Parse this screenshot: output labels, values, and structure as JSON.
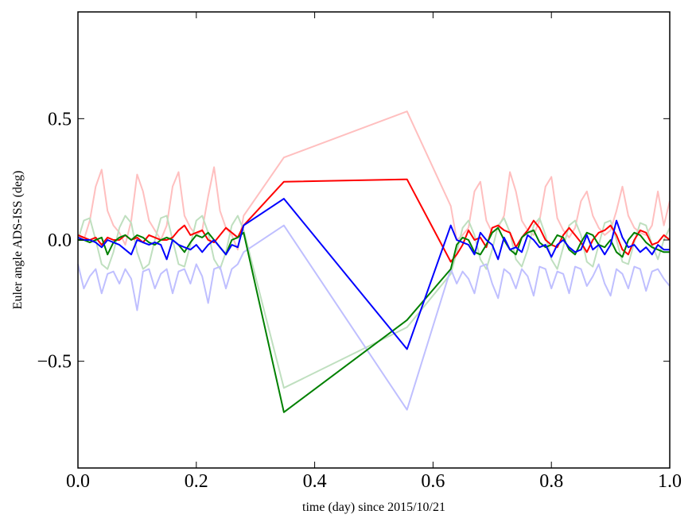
{
  "chart_data": {
    "type": "line",
    "title": "",
    "xlabel": "time (day) since 2015/10/21",
    "ylabel": "Euler angle ADS-ISS (deg)",
    "xlim": [
      0.0,
      1.0
    ],
    "ylim": [
      -0.94,
      0.94
    ],
    "xticks": [
      "0.0",
      "0.2",
      "0.4",
      "0.6",
      "0.8",
      "1.0"
    ],
    "xtick_values": [
      0.0,
      0.2,
      0.4,
      0.6,
      0.8,
      1.0
    ],
    "yticks": [
      "−0.5",
      "0.0",
      "0.5"
    ],
    "ytick_values": [
      -0.5,
      0.0,
      0.5
    ],
    "grid": false,
    "x": [
      0.0,
      0.01,
      0.02,
      0.03,
      0.04,
      0.05,
      0.06,
      0.07,
      0.08,
      0.09,
      0.1,
      0.11,
      0.12,
      0.13,
      0.14,
      0.15,
      0.16,
      0.17,
      0.18,
      0.19,
      0.2,
      0.21,
      0.22,
      0.23,
      0.24,
      0.25,
      0.26,
      0.27,
      0.28,
      0.348,
      0.556,
      0.63,
      0.64,
      0.65,
      0.66,
      0.67,
      0.68,
      0.69,
      0.7,
      0.71,
      0.72,
      0.73,
      0.74,
      0.75,
      0.76,
      0.77,
      0.78,
      0.79,
      0.8,
      0.81,
      0.82,
      0.83,
      0.84,
      0.85,
      0.86,
      0.87,
      0.88,
      0.89,
      0.9,
      0.91,
      0.92,
      0.93,
      0.94,
      0.95,
      0.96,
      0.97,
      0.98,
      0.99,
      1.0
    ],
    "series": [
      {
        "color": "#ffbfbf",
        "values": [
          0.02,
          0.0,
          0.08,
          0.22,
          0.29,
          0.12,
          0.06,
          0.03,
          -0.02,
          0.08,
          0.27,
          0.2,
          0.08,
          0.04,
          0.0,
          0.06,
          0.22,
          0.28,
          0.1,
          0.05,
          0.02,
          0.04,
          0.18,
          0.3,
          0.12,
          0.05,
          0.02,
          -0.04,
          0.1,
          0.34,
          0.53,
          0.14,
          0.0,
          0.02,
          0.05,
          0.2,
          0.24,
          0.08,
          0.03,
          0.05,
          0.1,
          0.28,
          0.2,
          0.08,
          0.04,
          0.02,
          0.08,
          0.22,
          0.26,
          0.09,
          0.04,
          0.01,
          0.05,
          0.16,
          0.2,
          0.1,
          0.05,
          0.02,
          0.04,
          0.12,
          0.22,
          0.1,
          0.05,
          0.03,
          0.02,
          0.06,
          0.2,
          0.06,
          0.16
        ]
      },
      {
        "color": "#bfdfbf",
        "values": [
          0.0,
          0.08,
          0.09,
          0.0,
          -0.1,
          -0.12,
          -0.05,
          0.05,
          0.1,
          0.07,
          -0.05,
          -0.12,
          -0.1,
          0.0,
          0.09,
          0.1,
          0.0,
          -0.1,
          -0.11,
          -0.02,
          0.08,
          0.1,
          0.03,
          -0.08,
          -0.12,
          -0.05,
          0.06,
          0.1,
          0.04,
          -0.61,
          -0.36,
          -0.14,
          -0.05,
          0.05,
          0.08,
          0.02,
          -0.08,
          -0.12,
          -0.04,
          0.06,
          0.09,
          0.03,
          -0.08,
          -0.11,
          -0.04,
          0.06,
          0.09,
          0.02,
          -0.08,
          -0.12,
          -0.03,
          0.06,
          0.08,
          0.02,
          -0.09,
          -0.11,
          -0.02,
          0.07,
          0.08,
          0.0,
          -0.09,
          -0.1,
          -0.01,
          0.07,
          0.06,
          -0.02,
          -0.08,
          0.0,
          0.05
        ]
      },
      {
        "color": "#bfbfff",
        "values": [
          -0.1,
          -0.2,
          -0.15,
          -0.12,
          -0.22,
          -0.14,
          -0.13,
          -0.18,
          -0.12,
          -0.16,
          -0.29,
          -0.13,
          -0.12,
          -0.2,
          -0.14,
          -0.12,
          -0.22,
          -0.13,
          -0.12,
          -0.18,
          -0.1,
          -0.15,
          -0.26,
          -0.12,
          -0.11,
          -0.2,
          -0.12,
          -0.1,
          -0.05,
          0.06,
          -0.7,
          -0.12,
          -0.18,
          -0.13,
          -0.16,
          -0.22,
          -0.11,
          -0.1,
          -0.18,
          -0.24,
          -0.12,
          -0.14,
          -0.2,
          -0.12,
          -0.15,
          -0.23,
          -0.11,
          -0.12,
          -0.2,
          -0.13,
          -0.14,
          -0.22,
          -0.11,
          -0.12,
          -0.19,
          -0.15,
          -0.1,
          -0.18,
          -0.23,
          -0.12,
          -0.14,
          -0.2,
          -0.11,
          -0.12,
          -0.21,
          -0.13,
          -0.12,
          -0.16,
          -0.19
        ]
      },
      {
        "color": "#ff0000",
        "values": [
          0.02,
          0.01,
          0.0,
          0.01,
          -0.02,
          0.01,
          0.0,
          0.0,
          0.02,
          0.0,
          0.01,
          -0.01,
          0.02,
          0.01,
          0.0,
          0.0,
          0.01,
          0.04,
          0.06,
          0.02,
          0.03,
          0.04,
          0.0,
          -0.01,
          0.02,
          0.05,
          0.03,
          0.01,
          0.06,
          0.24,
          0.25,
          -0.09,
          -0.06,
          -0.02,
          0.04,
          0.0,
          0.01,
          -0.03,
          0.05,
          0.06,
          0.04,
          0.03,
          -0.03,
          0.01,
          0.04,
          0.08,
          0.05,
          0.0,
          -0.02,
          -0.03,
          0.02,
          0.05,
          0.02,
          -0.01,
          -0.05,
          0.0,
          0.03,
          0.04,
          0.06,
          0.02,
          -0.04,
          -0.06,
          0.0,
          0.04,
          0.03,
          -0.02,
          -0.01,
          0.02,
          0.0
        ]
      },
      {
        "color": "#008000",
        "values": [
          0.0,
          0.0,
          -0.01,
          0.0,
          0.01,
          -0.06,
          -0.01,
          0.01,
          0.02,
          0.0,
          0.02,
          0.01,
          -0.01,
          -0.02,
          0.0,
          0.01,
          0.0,
          -0.02,
          -0.05,
          -0.01,
          0.02,
          0.01,
          0.03,
          0.0,
          -0.03,
          -0.06,
          0.0,
          0.01,
          0.03,
          -0.71,
          -0.33,
          -0.12,
          -0.02,
          0.01,
          0.0,
          -0.05,
          -0.06,
          -0.02,
          0.03,
          0.05,
          0.0,
          -0.04,
          -0.06,
          0.01,
          0.03,
          0.04,
          -0.01,
          -0.03,
          -0.02,
          0.02,
          0.01,
          -0.04,
          -0.06,
          -0.01,
          0.03,
          0.02,
          -0.02,
          -0.03,
          0.0,
          -0.05,
          -0.07,
          0.0,
          0.03,
          0.02,
          -0.01,
          -0.03,
          -0.04,
          -0.05,
          -0.05
        ]
      },
      {
        "color": "#0000ff",
        "values": [
          0.01,
          0.0,
          0.0,
          -0.01,
          -0.03,
          0.0,
          -0.01,
          -0.02,
          -0.04,
          -0.06,
          0.0,
          -0.01,
          -0.02,
          -0.01,
          -0.02,
          -0.08,
          0.0,
          -0.02,
          -0.03,
          -0.04,
          -0.02,
          -0.05,
          -0.02,
          0.0,
          -0.03,
          -0.06,
          -0.02,
          -0.03,
          0.06,
          0.17,
          -0.45,
          0.06,
          0.0,
          -0.01,
          -0.02,
          -0.06,
          0.03,
          0.0,
          -0.02,
          -0.08,
          0.01,
          -0.04,
          -0.03,
          -0.05,
          0.02,
          0.0,
          -0.03,
          -0.02,
          -0.07,
          -0.02,
          0.0,
          -0.03,
          -0.05,
          -0.04,
          0.02,
          -0.04,
          -0.02,
          -0.06,
          -0.02,
          0.08,
          0.01,
          -0.03,
          -0.02,
          -0.05,
          -0.03,
          -0.06,
          -0.02,
          -0.04,
          -0.04
        ]
      }
    ]
  }
}
